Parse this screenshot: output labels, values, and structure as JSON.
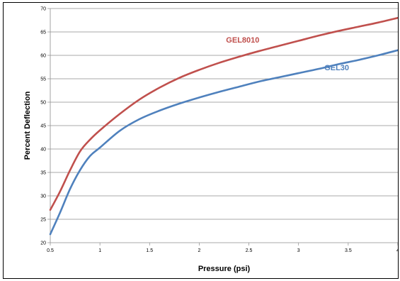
{
  "chart_data": {
    "type": "line",
    "xlabel": "Pressure (psi)",
    "ylabel": "Percent Deflection",
    "xlim": [
      0.5,
      4
    ],
    "ylim": [
      20,
      70
    ],
    "x_ticks": [
      "0.5",
      "1",
      "1.5",
      "2",
      "2.5",
      "3",
      "3.5",
      "4"
    ],
    "y_ticks": [
      "20",
      "25",
      "30",
      "35",
      "40",
      "45",
      "50",
      "55",
      "60",
      "65",
      "70"
    ],
    "grid": "horizontal",
    "series": [
      {
        "name": "GEL8010",
        "color": "#c0504d",
        "label_at": [
          2.27,
          62.7
        ],
        "x": [
          0.5,
          0.6,
          0.7,
          0.8,
          0.9,
          1.0,
          1.2,
          1.4,
          1.6,
          1.8,
          2.0,
          2.2,
          2.4,
          2.6,
          2.8,
          3.0,
          3.2,
          3.4,
          3.6,
          3.8,
          4.0
        ],
        "y": [
          27.0,
          31.0,
          35.5,
          39.5,
          42.0,
          44.0,
          47.5,
          50.6,
          53.1,
          55.2,
          56.9,
          58.4,
          59.7,
          60.9,
          62.0,
          63.1,
          64.2,
          65.2,
          66.1,
          67.0,
          68.0
        ]
      },
      {
        "name": "GEL30",
        "color": "#4f81bd",
        "label_at": [
          3.26,
          56.8
        ],
        "x": [
          0.5,
          0.6,
          0.7,
          0.8,
          0.9,
          1.0,
          1.2,
          1.4,
          1.6,
          1.8,
          2.0,
          2.2,
          2.4,
          2.6,
          2.8,
          3.0,
          3.2,
          3.4,
          3.6,
          3.8,
          4.0
        ],
        "y": [
          21.8,
          26.5,
          31.5,
          35.5,
          38.5,
          40.3,
          43.9,
          46.4,
          48.2,
          49.7,
          51.0,
          52.2,
          53.3,
          54.4,
          55.3,
          56.2,
          57.1,
          58.1,
          59.0,
          60.0,
          61.1
        ]
      }
    ]
  }
}
